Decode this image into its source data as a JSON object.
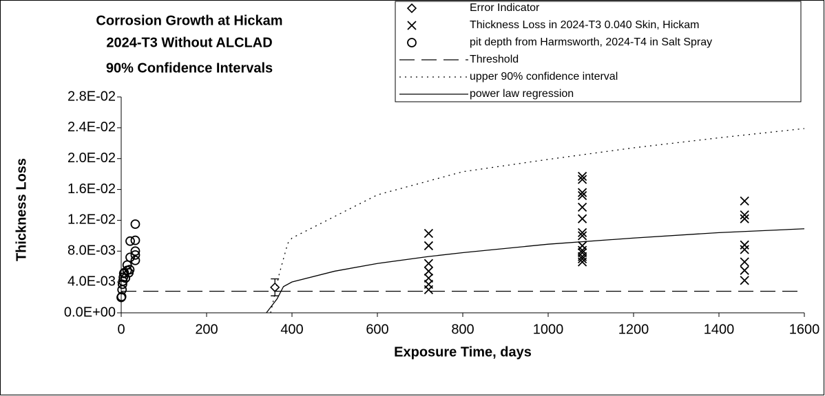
{
  "chart_data": {
    "type": "scatter",
    "title": [
      "Corrosion Growth at Hickam",
      "2024-T3 Without ALCLAD",
      "90% Confidence Intervals"
    ],
    "x_label": "Exposure Time, days",
    "y_label": "Thickness Loss",
    "xlim": [
      0,
      1600
    ],
    "xticks": [
      0,
      200,
      400,
      600,
      800,
      1000,
      1200,
      1400,
      1600
    ],
    "ylim": [
      0,
      0.028
    ],
    "yticks": [
      {
        "value": 0,
        "label": "0.0E+00"
      },
      {
        "value": 0.004,
        "label": "4.0E-03"
      },
      {
        "value": 0.008,
        "label": "8.0E-03"
      },
      {
        "value": 0.012,
        "label": "1.2E-02"
      },
      {
        "value": 0.016,
        "label": "1.6E-02"
      },
      {
        "value": 0.02,
        "label": "2.0E-02"
      },
      {
        "value": 0.024,
        "label": "2.4E-02"
      },
      {
        "value": 0.028,
        "label": "2.8E-02"
      }
    ],
    "legend": "upper right",
    "series": [
      {
        "name": "Error Indicator",
        "marker": "diamond",
        "color": "#000000",
        "x": [
          360
        ],
        "values": [
          0.0033
        ],
        "errors": [
          0.0011
        ]
      },
      {
        "name": "Thickness Loss in 2024-T3 0.040 Skin, Hickam",
        "marker": "cross",
        "color": "#000000",
        "x": [
          720,
          720,
          720,
          720,
          720,
          720,
          720,
          1080,
          1080,
          1080,
          1080,
          1080,
          1080,
          1080,
          1080,
          1080,
          1080,
          1080,
          1080,
          1080,
          1080,
          1460,
          1460,
          1460,
          1460,
          1460,
          1460,
          1460,
          1460
        ],
        "values": [
          0.0103,
          0.0087,
          0.0064,
          0.0054,
          0.0045,
          0.0037,
          0.003,
          0.0177,
          0.0173,
          0.0156,
          0.0152,
          0.0137,
          0.0122,
          0.0104,
          0.01,
          0.0087,
          0.0081,
          0.0078,
          0.0073,
          0.007,
          0.0066,
          0.0145,
          0.0127,
          0.0122,
          0.0088,
          0.0082,
          0.0066,
          0.0055,
          0.0042
        ]
      },
      {
        "name": "pit depth from Harmsworth, 2024-T4 in Salt Spray",
        "marker": "circle",
        "color": "#000000",
        "x": [
          0,
          1,
          2,
          3,
          4,
          5,
          6,
          7,
          10,
          14,
          14,
          18,
          20,
          21,
          21,
          33,
          33,
          33,
          33,
          33
        ],
        "values": [
          0.002,
          0.0021,
          0.003,
          0.0037,
          0.0041,
          0.0046,
          0.0051,
          0.0052,
          0.0045,
          0.0055,
          0.0062,
          0.0052,
          0.0056,
          0.0072,
          0.0093,
          0.0115,
          0.0094,
          0.008,
          0.0075,
          0.0068
        ]
      },
      {
        "name": "Threshold",
        "line": "dash",
        "color": "#000000",
        "x": [
          0,
          1600
        ],
        "values": [
          0.0028,
          0.0028
        ]
      },
      {
        "name": "upper 90% confidence interval",
        "line": "dot",
        "color": "#000000",
        "x": [
          350,
          370,
          390,
          400,
          600,
          800,
          1000,
          1200,
          1400,
          1600
        ],
        "values": [
          0,
          0.005,
          0.009,
          0.0097,
          0.0153,
          0.0183,
          0.0199,
          0.0214,
          0.0227,
          0.0239
        ]
      },
      {
        "name": "power law regression",
        "line": "solid",
        "color": "#000000",
        "x": [
          340,
          365,
          380,
          400,
          500,
          600,
          720,
          800,
          1000,
          1200,
          1400,
          1600
        ],
        "values": [
          0,
          0.0018,
          0.0034,
          0.004,
          0.0054,
          0.0064,
          0.0073,
          0.0078,
          0.0089,
          0.0097,
          0.0104,
          0.0109
        ]
      }
    ]
  }
}
